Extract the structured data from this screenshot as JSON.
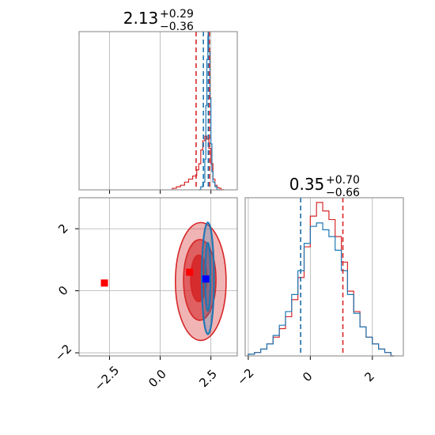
{
  "chart_data": {
    "type": "corner",
    "colors": {
      "red": "#d62728",
      "blue": "#1f77b4",
      "red_marker": "#ff0000",
      "blue_marker": "#0000ff",
      "grid": "#b0b0b0",
      "frame": "#808080"
    },
    "grid": true,
    "panels": [
      {
        "id": "hist-top",
        "type": "histogram",
        "title": {
          "main": "2.13",
          "sup": "+0.29",
          "sub": "−0.36"
        },
        "xlim": [
          -4.0,
          3.8
        ],
        "xticks": [
          -2.5,
          0.0,
          2.5
        ],
        "xtick_labels_shown": false,
        "series": [
          {
            "name": "",
            "color": "red",
            "style": "step",
            "x": [
              0.6,
              0.8,
              1.0,
              1.2,
              1.4,
              1.6,
              1.8,
              1.9,
              2.0,
              2.1,
              2.2,
              2.3,
              2.4,
              2.5,
              2.6,
              2.7,
              2.8,
              2.9,
              3.0
            ],
            "y": [
              0.01,
              0.02,
              0.03,
              0.05,
              0.07,
              0.09,
              0.13,
              0.17,
              0.26,
              0.32,
              0.35,
              0.33,
              0.27,
              0.17,
              0.07,
              0.03,
              0.015,
              0.01,
              0.0
            ]
          },
          {
            "name": "",
            "color": "blue",
            "style": "step",
            "x": [
              1.9,
              2.0,
              2.1,
              2.2,
              2.25,
              2.3,
              2.35,
              2.4,
              2.45,
              2.5,
              2.55,
              2.6,
              2.7,
              2.8
            ],
            "y": [
              0.0,
              0.02,
              0.05,
              0.2,
              0.55,
              0.85,
              1.0,
              0.9,
              0.6,
              0.3,
              0.12,
              0.05,
              0.02,
              0.0
            ]
          }
        ],
        "quantile_lines": [
          {
            "color": "red",
            "x": 1.77
          },
          {
            "color": "red",
            "x": 2.43
          },
          {
            "color": "blue",
            "x": 2.13
          },
          {
            "color": "blue",
            "x": 2.37
          }
        ]
      },
      {
        "id": "contour-panel",
        "type": "contour",
        "xlim": [
          -4.0,
          3.8
        ],
        "ylim": [
          -2.1,
          3.0
        ],
        "xticks": [
          -2.5,
          0.0,
          2.5
        ],
        "xtick_labels": [
          "−2.5",
          "0.0",
          "2.5"
        ],
        "yticks": [
          -2,
          0,
          2
        ],
        "ytick_labels": [
          "−2",
          "0",
          "2"
        ],
        "contours": [
          {
            "color": "red",
            "cx": 2.0,
            "cy": 0.3,
            "rx": 1.25,
            "ry": 1.9,
            "level": "outer"
          },
          {
            "color": "red",
            "cx": 1.95,
            "cy": 0.35,
            "rx": 0.8,
            "ry": 1.3,
            "level": "middle"
          },
          {
            "color": "red",
            "cx": 1.9,
            "cy": 0.4,
            "rx": 0.4,
            "ry": 0.75,
            "level": "inner"
          },
          {
            "color": "blue",
            "cx": 2.35,
            "cy": 0.4,
            "rx": 0.3,
            "ry": 1.8,
            "level": "outer"
          },
          {
            "color": "blue",
            "cx": 2.35,
            "cy": 0.45,
            "rx": 0.13,
            "ry": 1.1,
            "level": "inner"
          }
        ],
        "markers": [
          {
            "color": "red_marker",
            "x": -2.75,
            "y": 0.25
          },
          {
            "color": "red_marker",
            "x": 1.45,
            "y": 0.6
          },
          {
            "color": "blue_marker",
            "x": 2.25,
            "y": 0.38
          }
        ]
      },
      {
        "id": "hist-right",
        "type": "histogram",
        "title": {
          "main": "0.35",
          "sup": "+0.70",
          "sub": "−0.66"
        },
        "xlim": [
          -2.1,
          3.0
        ],
        "xticks": [
          -2,
          0,
          2
        ],
        "xtick_labels": [
          "−2",
          "0",
          "2"
        ],
        "series": [
          {
            "name": "",
            "color": "red",
            "style": "step",
            "x": [
              -2.0,
              -1.8,
              -1.6,
              -1.4,
              -1.2,
              -1.0,
              -0.8,
              -0.6,
              -0.4,
              -0.2,
              0.0,
              0.2,
              0.4,
              0.6,
              0.8,
              1.0,
              1.2,
              1.4,
              1.6,
              1.8,
              2.0,
              2.2,
              2.4,
              2.6
            ],
            "y": [
              0.01,
              0.02,
              0.04,
              0.07,
              0.11,
              0.16,
              0.23,
              0.33,
              0.46,
              0.64,
              0.82,
              0.9,
              0.85,
              0.8,
              0.7,
              0.55,
              0.38,
              0.26,
              0.17,
              0.11,
              0.07,
              0.04,
              0.02,
              0.0
            ]
          },
          {
            "name": "",
            "color": "blue",
            "style": "step",
            "x": [
              -2.0,
              -1.8,
              -1.6,
              -1.4,
              -1.2,
              -1.0,
              -0.8,
              -0.6,
              -0.4,
              -0.2,
              0.0,
              0.2,
              0.4,
              0.6,
              0.8,
              1.0,
              1.2,
              1.4,
              1.6,
              1.8,
              2.0,
              2.2,
              2.4,
              2.6
            ],
            "y": [
              0.01,
              0.02,
              0.04,
              0.07,
              0.12,
              0.18,
              0.26,
              0.36,
              0.5,
              0.66,
              0.76,
              0.78,
              0.74,
              0.7,
              0.62,
              0.5,
              0.36,
              0.25,
              0.17,
              0.11,
              0.07,
              0.04,
              0.02,
              0.0
            ]
          }
        ],
        "quantile_lines": [
          {
            "color": "red",
            "x": -0.31
          },
          {
            "color": "red",
            "x": 1.05
          },
          {
            "color": "blue",
            "x": -0.31
          }
        ]
      }
    ]
  }
}
